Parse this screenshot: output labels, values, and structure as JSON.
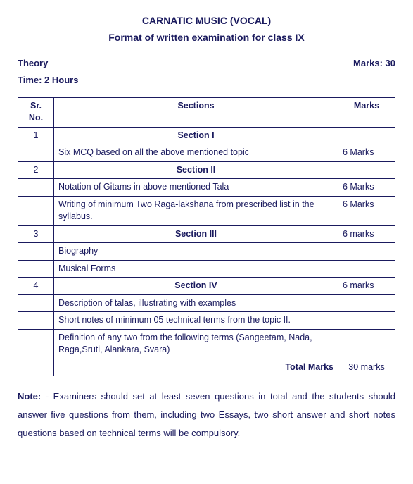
{
  "title": {
    "main": "CARNATIC MUSIC (VOCAL)",
    "sub": "Format of written examination for class IX"
  },
  "meta": {
    "theory": "Theory",
    "marks": "Marks: 30",
    "time": "Time: 2 Hours"
  },
  "table": {
    "headers": {
      "sr": "Sr. No.",
      "sections": "Sections",
      "marks": "Marks"
    },
    "sections": [
      {
        "no": "1",
        "title": "Section I",
        "marks": "",
        "rows": [
          {
            "desc": "Six MCQ based on all the above mentioned topic",
            "marks": "6 Marks"
          }
        ]
      },
      {
        "no": "2",
        "title": "Section II",
        "marks": "",
        "rows": [
          {
            "desc": "Notation of Gitams in above mentioned Tala",
            "marks": "6 Marks"
          },
          {
            "desc": "Writing of minimum Two Raga-lakshana from prescribed list in the syllabus.",
            "marks": "6 Marks"
          }
        ]
      },
      {
        "no": "3",
        "title": "Section III",
        "marks": "6 marks",
        "rows": [
          {
            "desc": "Biography",
            "marks": ""
          },
          {
            "desc": "Musical Forms",
            "marks": ""
          }
        ]
      },
      {
        "no": "4",
        "title": "Section IV",
        "marks": "6 marks",
        "rows": [
          {
            "desc": "Description of talas, illustrating with examples",
            "marks": ""
          },
          {
            "desc": "Short notes of minimum 05 technical terms from the topic II.",
            "marks": ""
          },
          {
            "desc": "Definition of any two from the following terms (Sangeetam, Nada, Raga,Sruti, Alankara, Svara)",
            "marks": ""
          }
        ]
      }
    ],
    "total": {
      "label": "Total Marks",
      "value": "30 marks"
    }
  },
  "note": {
    "label": "Note:",
    "text": " - Examiners should set at least seven questions in total and the students should answer five questions from them, including two Essays, two short answer and short notes questions based on technical terms will be compulsory."
  }
}
